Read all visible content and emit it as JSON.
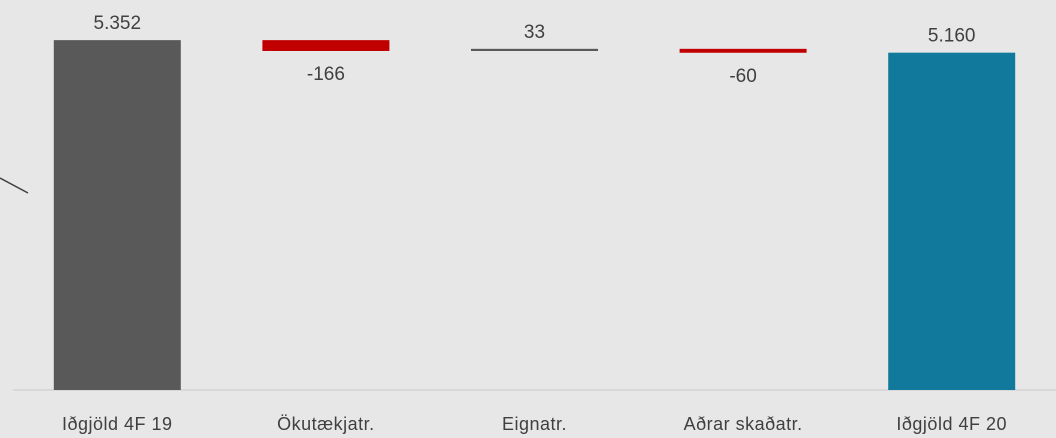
{
  "chart_data": {
    "type": "waterfall",
    "categories": [
      "Iðgjöld 4F 19",
      "Ökutækjatr.",
      "Eignatr.",
      "Aðrar skaðatr.",
      "Iðgjöld 4F 20"
    ],
    "values": [
      5352,
      -166,
      33,
      -60,
      5160
    ],
    "value_labels": [
      "5.352",
      "-166",
      "33",
      "-60",
      "5.160"
    ],
    "colors": [
      "#595959",
      "#c00000",
      "#595959",
      "#c00000",
      "#117a9c"
    ],
    "ylim": [
      0,
      5400
    ]
  }
}
